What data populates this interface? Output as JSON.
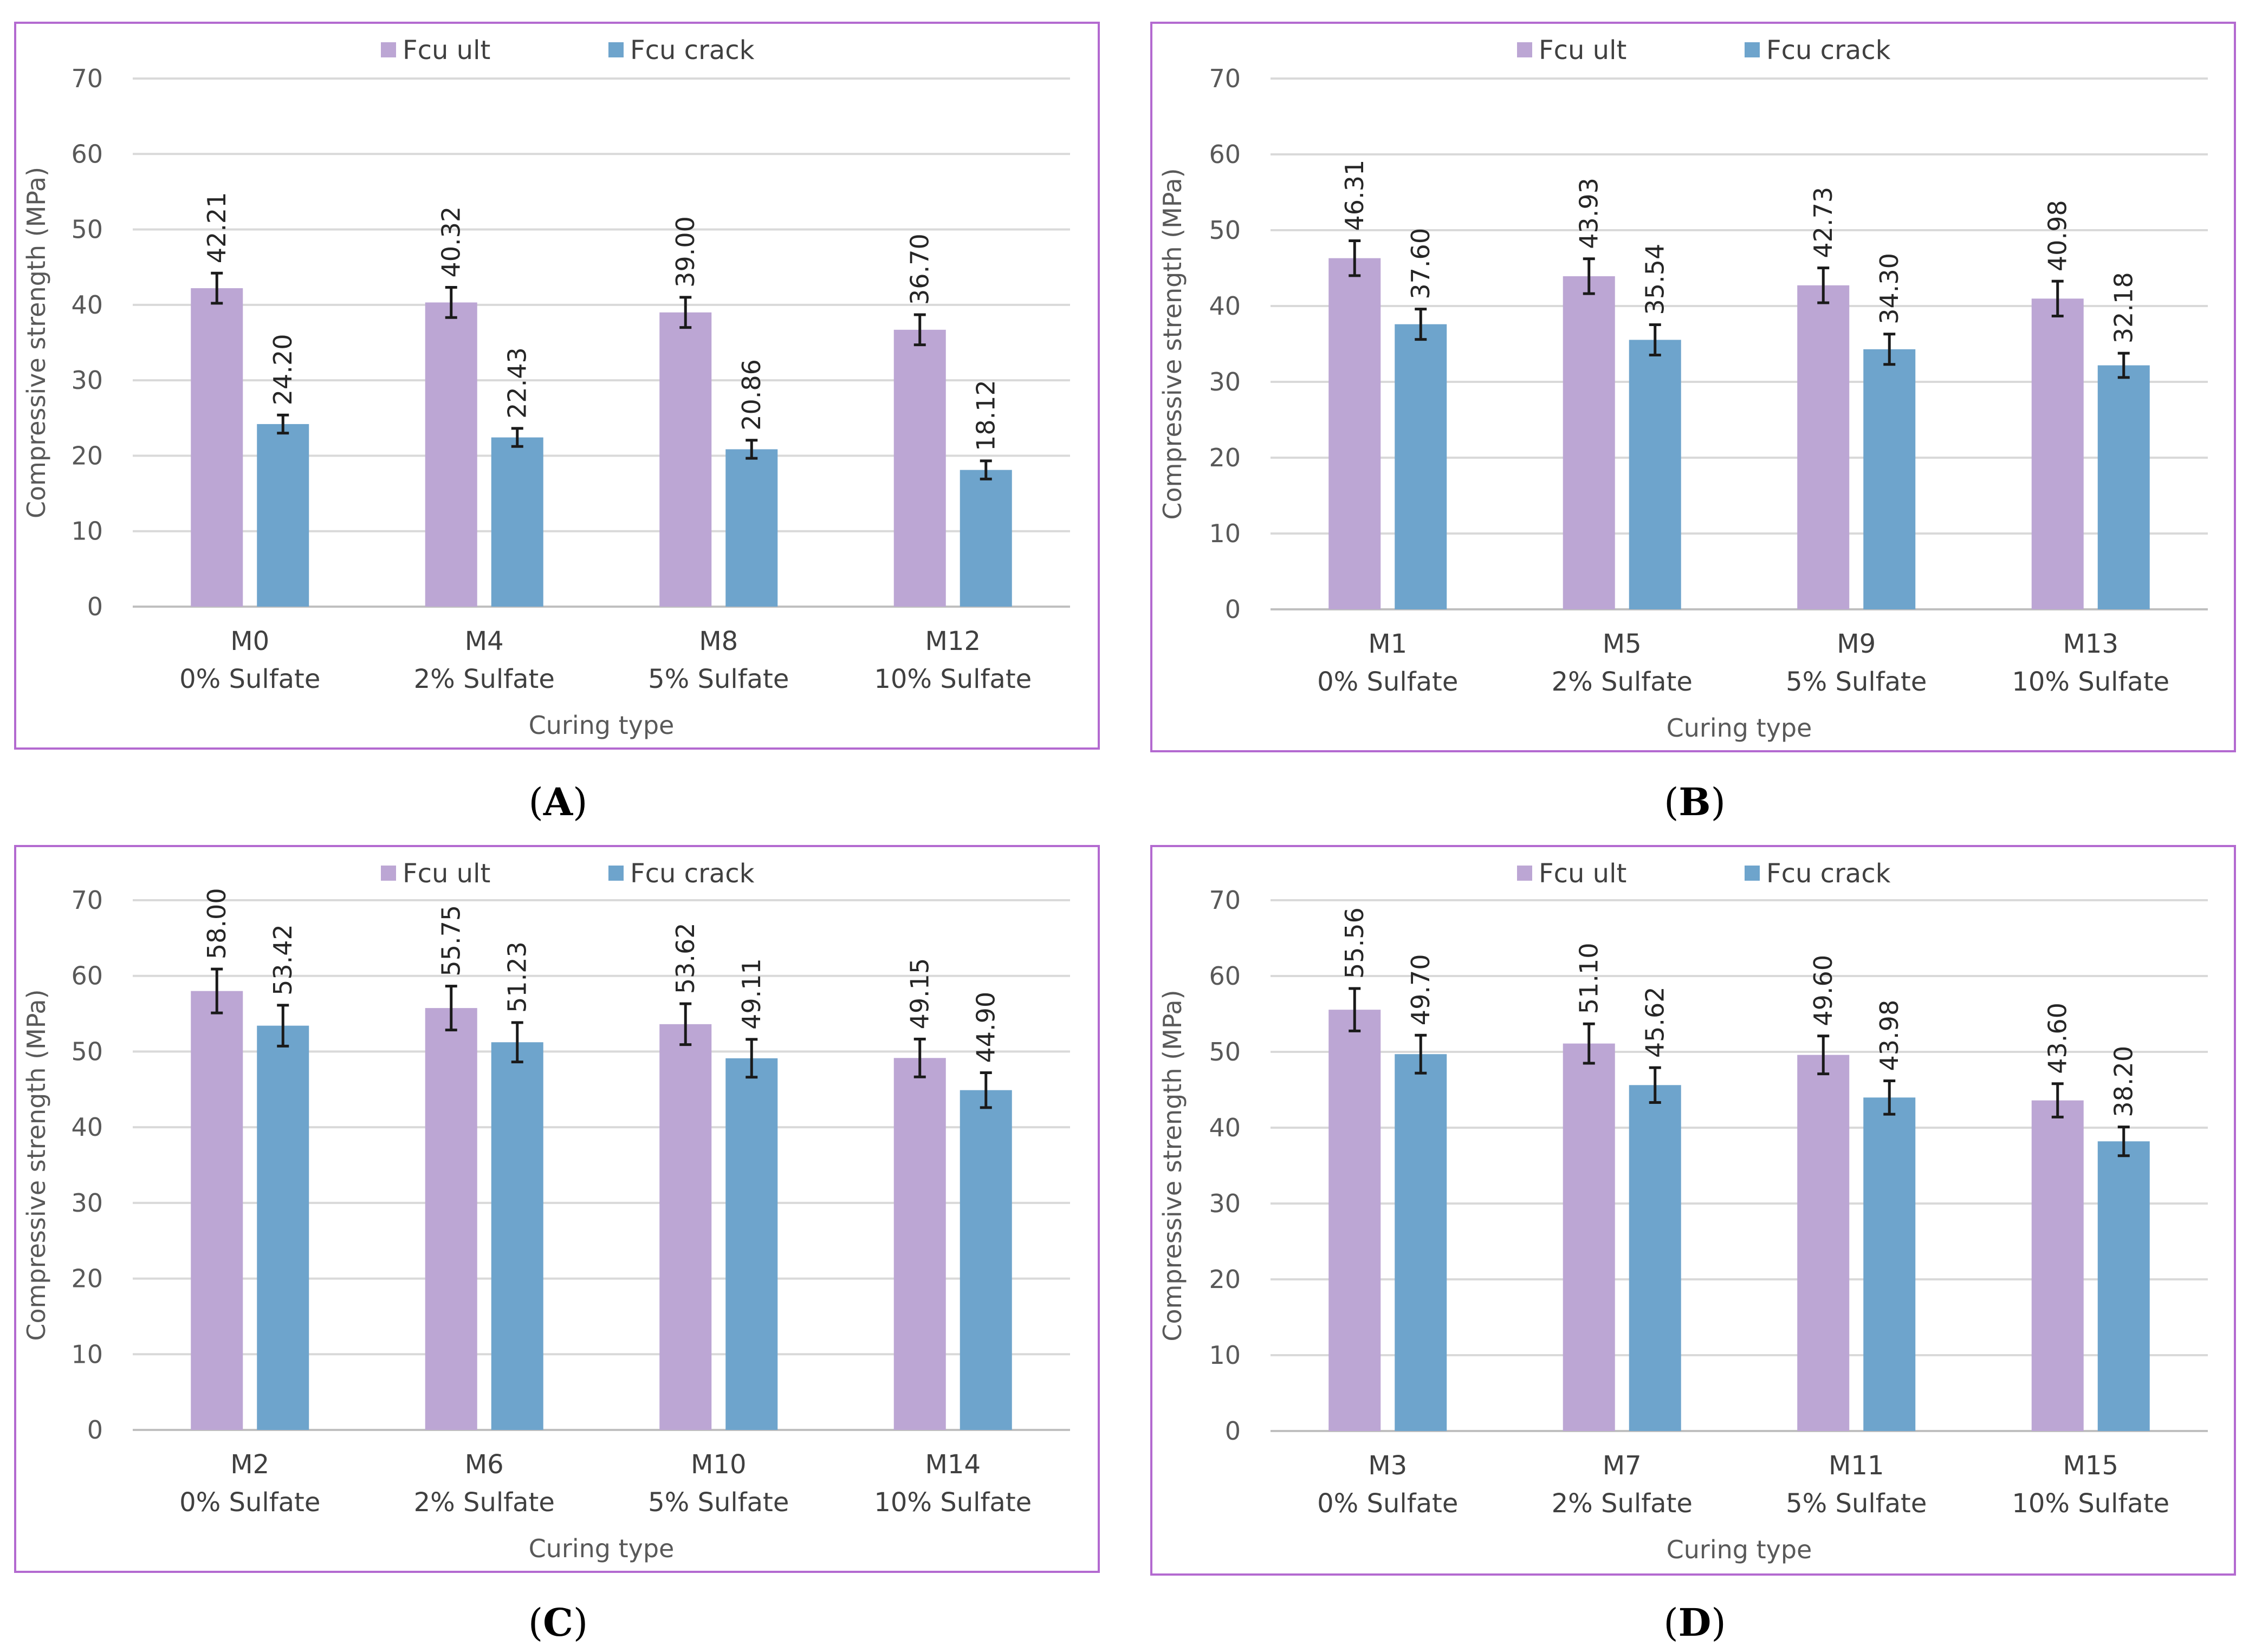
{
  "figure": {
    "captions": [
      "A",
      "B",
      "C",
      "D"
    ]
  },
  "colors": {
    "ult": "#bca6d4",
    "crack": "#6ea4cc",
    "frame": "#b36ad0"
  },
  "chart_data": [
    {
      "panel": "A",
      "type": "bar",
      "categories": [
        [
          "M0",
          "0% Sulfate"
        ],
        [
          "M4",
          "2% Sulfate"
        ],
        [
          "M8",
          "5% Sulfate"
        ],
        [
          "M12",
          "10% Sulfate"
        ]
      ],
      "series": [
        {
          "name": "Fcu ult",
          "values": [
            42.21,
            40.32,
            39.0,
            36.7
          ],
          "labels": [
            "42.21",
            "40.32",
            "39.00",
            "36.70"
          ],
          "errors": [
            2.0,
            2.0,
            2.0,
            2.0
          ]
        },
        {
          "name": "Fcu crack",
          "values": [
            24.2,
            22.43,
            20.86,
            18.12
          ],
          "labels": [
            "24.20",
            "22.43",
            "20.86",
            "18.12"
          ],
          "errors": [
            1.2,
            1.2,
            1.2,
            1.2
          ]
        }
      ],
      "xlabel": "Curing type",
      "ylabel": "Compressive  strength (MPa)",
      "ylim": [
        0,
        70
      ],
      "yticks": [
        "0",
        "10",
        "20",
        "30",
        "40",
        "50",
        "60",
        "70"
      ],
      "legend": "top-center"
    },
    {
      "panel": "B",
      "type": "bar",
      "categories": [
        [
          "M1",
          "0% Sulfate"
        ],
        [
          "M5",
          "2% Sulfate"
        ],
        [
          "M9",
          "5% Sulfate"
        ],
        [
          "M13",
          "10% Sulfate"
        ]
      ],
      "series": [
        {
          "name": "Fcu ult",
          "values": [
            46.31,
            43.93,
            42.73,
            40.98
          ],
          "labels": [
            "46.31",
            "43.93",
            "42.73",
            "40.98"
          ],
          "errors": [
            2.3,
            2.3,
            2.3,
            2.3
          ]
        },
        {
          "name": "Fcu crack",
          "values": [
            37.6,
            35.54,
            34.3,
            32.18
          ],
          "labels": [
            "37.60",
            "35.54",
            "34.30",
            "32.18"
          ],
          "errors": [
            2.0,
            2.0,
            2.0,
            1.6
          ]
        }
      ],
      "xlabel": "Curing type",
      "ylabel": "Compressive  strength (MPa)",
      "ylim": [
        0,
        70
      ],
      "yticks": [
        "0",
        "10",
        "20",
        "30",
        "40",
        "50",
        "60",
        "70"
      ],
      "legend": "top-center"
    },
    {
      "panel": "C",
      "type": "bar",
      "categories": [
        [
          "M2",
          "0% Sulfate"
        ],
        [
          "M6",
          "2% Sulfate"
        ],
        [
          "M10",
          "5% Sulfate"
        ],
        [
          "M14",
          "10% Sulfate"
        ]
      ],
      "series": [
        {
          "name": "Fcu ult",
          "values": [
            58.0,
            55.75,
            53.62,
            49.15
          ],
          "labels": [
            "58.00",
            "55.75",
            "53.62",
            "49.15"
          ],
          "errors": [
            2.9,
            2.9,
            2.7,
            2.5
          ]
        },
        {
          "name": "Fcu crack",
          "values": [
            53.42,
            51.23,
            49.11,
            44.9
          ],
          "labels": [
            "53.42",
            "51.23",
            "49.11",
            "44.90"
          ],
          "errors": [
            2.7,
            2.6,
            2.5,
            2.3
          ]
        }
      ],
      "xlabel": "Curing type",
      "ylabel": "Compressive  strength (MPa)",
      "ylim": [
        0,
        70
      ],
      "yticks": [
        "0",
        "10",
        "20",
        "30",
        "40",
        "50",
        "60",
        "70"
      ],
      "legend": "top-center"
    },
    {
      "panel": "D",
      "type": "bar",
      "categories": [
        [
          "M3",
          "0% Sulfate"
        ],
        [
          "M7",
          "2% Sulfate"
        ],
        [
          "M11",
          "5% Sulfate"
        ],
        [
          "M15",
          "10% Sulfate"
        ]
      ],
      "series": [
        {
          "name": "Fcu ult",
          "values": [
            55.56,
            51.1,
            49.6,
            43.6
          ],
          "labels": [
            "55.56",
            "51.10",
            "49.60",
            "43.60"
          ],
          "errors": [
            2.8,
            2.6,
            2.5,
            2.2
          ]
        },
        {
          "name": "Fcu crack",
          "values": [
            49.7,
            45.62,
            43.98,
            38.2
          ],
          "labels": [
            "49.70",
            "45.62",
            "43.98",
            "38.20"
          ],
          "errors": [
            2.5,
            2.3,
            2.2,
            1.9
          ]
        }
      ],
      "xlabel": "Curing type",
      "ylabel": "Compressive  strength (MPa)",
      "ylim": [
        0,
        70
      ],
      "yticks": [
        "0",
        "10",
        "20",
        "30",
        "40",
        "50",
        "60",
        "70"
      ],
      "legend": "top-center"
    }
  ]
}
